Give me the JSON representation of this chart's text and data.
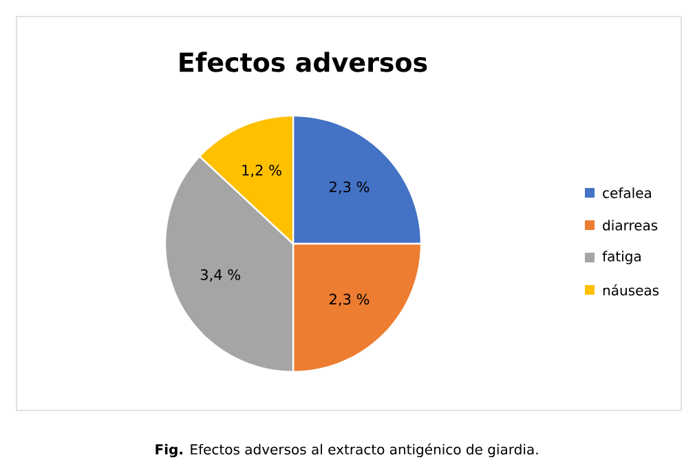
{
  "chart_data": {
    "type": "pie",
    "title": "Efectos adversos",
    "categories": [
      "cefalea",
      "diarreas",
      "fatiga",
      "náuseas"
    ],
    "values": [
      2.3,
      2.3,
      3.4,
      1.2
    ],
    "value_labels": [
      "2,3 %",
      "2,3 %",
      "3,4 %",
      "1,2 %"
    ],
    "colors": [
      "#4472c4",
      "#ed7d31",
      "#a5a5a5",
      "#ffc000"
    ],
    "legend": "right",
    "annotations": [
      "**Fig.** Efectos adversos al extracto antigénico de giardia."
    ]
  }
}
